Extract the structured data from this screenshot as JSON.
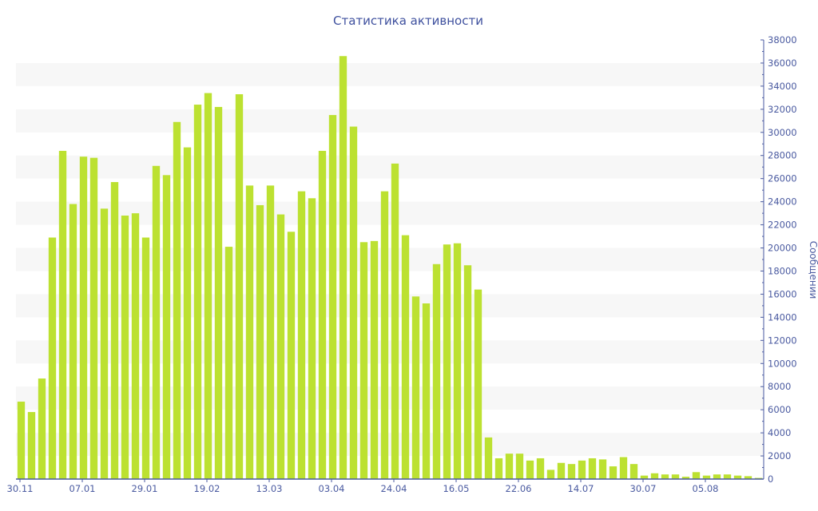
{
  "chart_data": {
    "type": "bar",
    "title": "Статистика активности",
    "xlabel": "",
    "ylabel": "Сообщении",
    "ylim": [
      0,
      38000
    ],
    "y_ticks": [
      0,
      2000,
      4000,
      6000,
      8000,
      10000,
      12000,
      14000,
      16000,
      18000,
      20000,
      22000,
      24000,
      26000,
      28000,
      30000,
      32000,
      34000,
      36000,
      38000
    ],
    "y_axis_position": "right",
    "grid": "alternating horizontal bands",
    "x_tick_labels": [
      "30.11",
      "07.01",
      "29.01",
      "19.02",
      "13.03",
      "03.04",
      "24.04",
      "16.05",
      "22.06",
      "14.07",
      "30.07",
      "05.08"
    ],
    "x_tick_every": 6,
    "bar_color": "#bce131",
    "axis_color": "#4a5aa0",
    "values": [
      6700,
      5800,
      8700,
      20900,
      28400,
      23800,
      27900,
      27800,
      23400,
      25700,
      22800,
      23000,
      20900,
      27100,
      26300,
      30900,
      28700,
      32400,
      33400,
      32200,
      20100,
      33300,
      25400,
      23700,
      25400,
      22900,
      21400,
      24900,
      24300,
      28400,
      31500,
      36600,
      30500,
      20500,
      20600,
      24900,
      27300,
      21100,
      15800,
      15200,
      18600,
      20300,
      20400,
      18500,
      16400,
      3600,
      1800,
      2200,
      2200,
      1600,
      1800,
      800,
      1400,
      1300,
      1600,
      1800,
      1700,
      1100,
      1900,
      1300,
      300,
      500,
      400,
      400,
      200,
      600,
      300,
      400,
      400,
      300,
      250,
      100
    ]
  }
}
